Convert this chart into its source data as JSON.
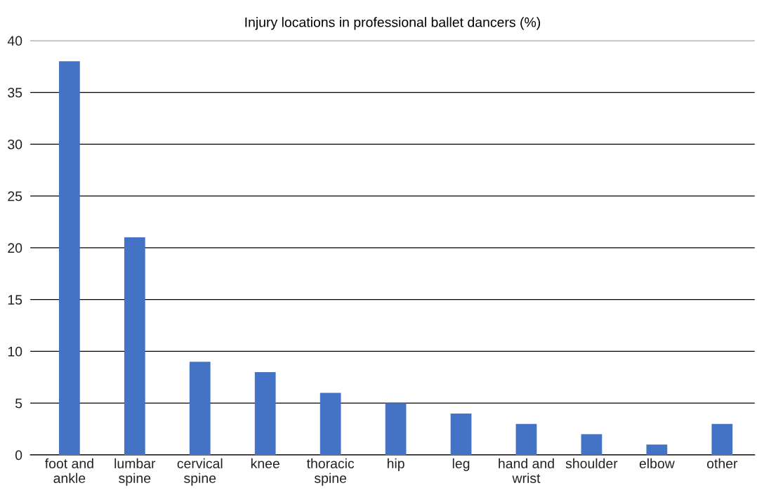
{
  "chart_data": {
    "type": "bar",
    "title": "Injury locations in professional ballet dancers (%)",
    "categories": [
      "foot and\nankle",
      "lumbar\nspine",
      "cervical\nspine",
      "knee",
      "thoracic\nspine",
      "hip",
      "leg",
      "hand and\nwrist",
      "shoulder",
      "elbow",
      "other"
    ],
    "values": [
      38,
      21,
      9,
      8,
      6,
      5,
      4,
      3,
      2,
      1,
      3
    ],
    "color": "#4472c4",
    "ylim": [
      0,
      40
    ],
    "yticks": [
      0,
      5,
      10,
      15,
      20,
      25,
      30,
      35,
      40
    ],
    "grid": "y"
  }
}
